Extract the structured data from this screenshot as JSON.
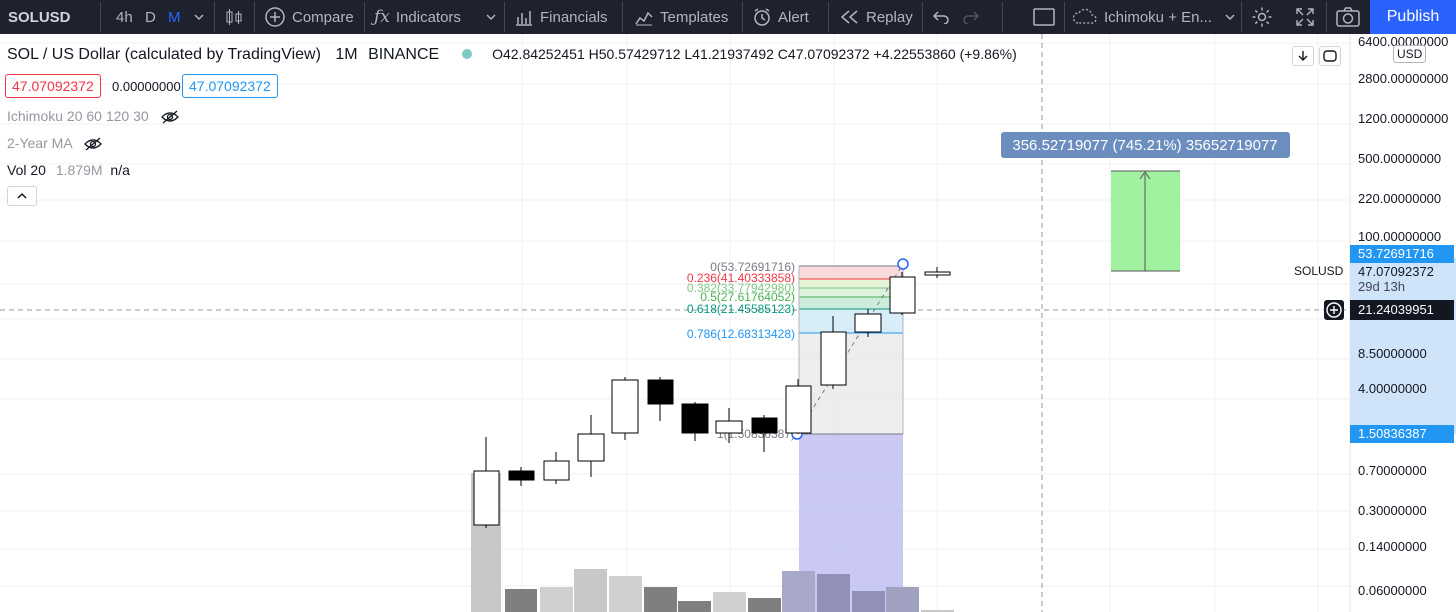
{
  "toolbar": {
    "symbol": "SOLUSD",
    "intervals": [
      "4h",
      "D",
      "M"
    ],
    "active_interval": "M",
    "compare": "Compare",
    "indicators": "Indicators",
    "financials": "Financials",
    "templates": "Templates",
    "alert": "Alert",
    "replay": "Replay",
    "layout_name": "Ichimoku + En...",
    "publish": "Publish"
  },
  "legend": {
    "title": "SOL / US Dollar (calculated by TradingView)",
    "interval": "1M",
    "exchange": "BINANCE",
    "ohlc": "O42.84252451  H50.57429712  L41.21937492  C47.07092372  +4.22553860 (+9.86%)",
    "bid": "47.07092372",
    "spread": "0.00000000",
    "ask": "47.07092372",
    "indicators": [
      {
        "label": "Ichimoku 20 60 120 30"
      },
      {
        "label": "2-Year MA"
      }
    ],
    "vol_label": "Vol 20",
    "vol_value": "1.879M",
    "vol_na": "n/a"
  },
  "price_axis": {
    "currency": "USD",
    "ticks": [
      "6400.00000000",
      "2800.00000000",
      "1200.00000000",
      "500.00000000",
      "220.00000000",
      "100.00000000",
      "8.50000000",
      "4.00000000",
      "0.70000000",
      "0.30000000",
      "0.14000000",
      "0.06000000"
    ],
    "high_label": "53.72691716",
    "last_symbol": "SOLUSD",
    "last_price": "47.07092372",
    "countdown": "29d 13h",
    "crosshair_price": "21.24039951",
    "low_label": "1.50836387"
  },
  "fib": {
    "levels": [
      {
        "label": "0(53.72691716)",
        "color": "#787b86"
      },
      {
        "label": "0.236(41.40333858)",
        "color": "#f23645"
      },
      {
        "label": "0.382(33.77942980)",
        "color": "#81c784"
      },
      {
        "label": "0.5(27.61764052)",
        "color": "#4caf50"
      },
      {
        "label": "0.618(21.45585123)",
        "color": "#089981"
      },
      {
        "label": "0.786(12.68313428)",
        "color": "#2196f3"
      },
      {
        "label": "1(1.50836387)",
        "color": "#787b86"
      }
    ]
  },
  "measure": {
    "label": "356.52719077 (745.21%) 35652719077",
    "color": "#6c8ebf"
  },
  "colors": {
    "toolbar_bg": "#1e222d",
    "accent": "#2962ff",
    "bull_candle": "#ffffff",
    "bear_candle": "#000000",
    "projection_green": "#90ee90",
    "projection_lavender": "#b2b2ee"
  }
}
